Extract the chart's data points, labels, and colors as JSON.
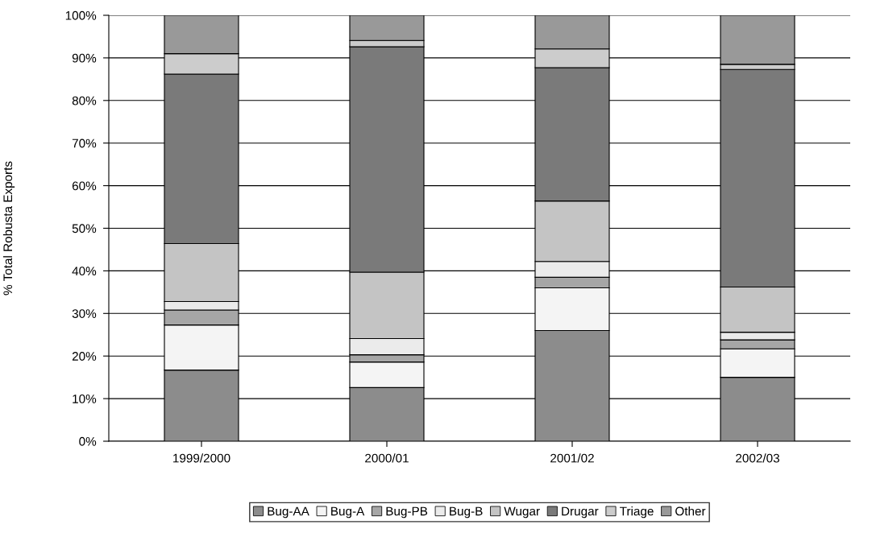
{
  "chart_data": {
    "type": "bar",
    "stacked": true,
    "ylabel": "% Total Robusta Exports",
    "categories": [
      "1999/2000",
      "2000/01",
      "2001/02",
      "2002/03"
    ],
    "series": [
      {
        "name": "Bug-AA",
        "color": "#8c8c8c",
        "values": [
          16.7,
          12.6,
          26.0,
          15.0
        ]
      },
      {
        "name": "Bug-A",
        "color": "#f4f4f4",
        "values": [
          10.6,
          6.0,
          10.0,
          6.7
        ]
      },
      {
        "name": "Bug-PB",
        "color": "#a6a6a6",
        "values": [
          3.5,
          1.7,
          2.5,
          2.1
        ]
      },
      {
        "name": "Bug-B",
        "color": "#ebebeb",
        "values": [
          2.0,
          3.8,
          3.7,
          1.8
        ]
      },
      {
        "name": "Wugar",
        "color": "#c4c4c4",
        "values": [
          13.6,
          15.6,
          14.2,
          10.6
        ]
      },
      {
        "name": "Drugar",
        "color": "#7a7a7a",
        "values": [
          39.8,
          52.9,
          31.3,
          51.1
        ]
      },
      {
        "name": "Triage",
        "color": "#cccccc",
        "values": [
          4.8,
          1.5,
          4.4,
          1.2
        ]
      },
      {
        "name": "Other",
        "color": "#999999",
        "values": [
          9.0,
          5.9,
          7.9,
          11.5
        ]
      }
    ],
    "ylim": [
      0,
      100
    ],
    "yticks": [
      {
        "value": 0,
        "label": "0%"
      },
      {
        "value": 10,
        "label": "10%"
      },
      {
        "value": 20,
        "label": "20%"
      },
      {
        "value": 30,
        "label": "30%"
      },
      {
        "value": 40,
        "label": "40%"
      },
      {
        "value": 50,
        "label": "50%"
      },
      {
        "value": 60,
        "label": "60%"
      },
      {
        "value": 70,
        "label": "70%"
      },
      {
        "value": 80,
        "label": "80%"
      },
      {
        "value": 90,
        "label": "90%"
      },
      {
        "value": 100,
        "label": "100%"
      }
    ],
    "grid": "y",
    "legend": "bottom"
  }
}
